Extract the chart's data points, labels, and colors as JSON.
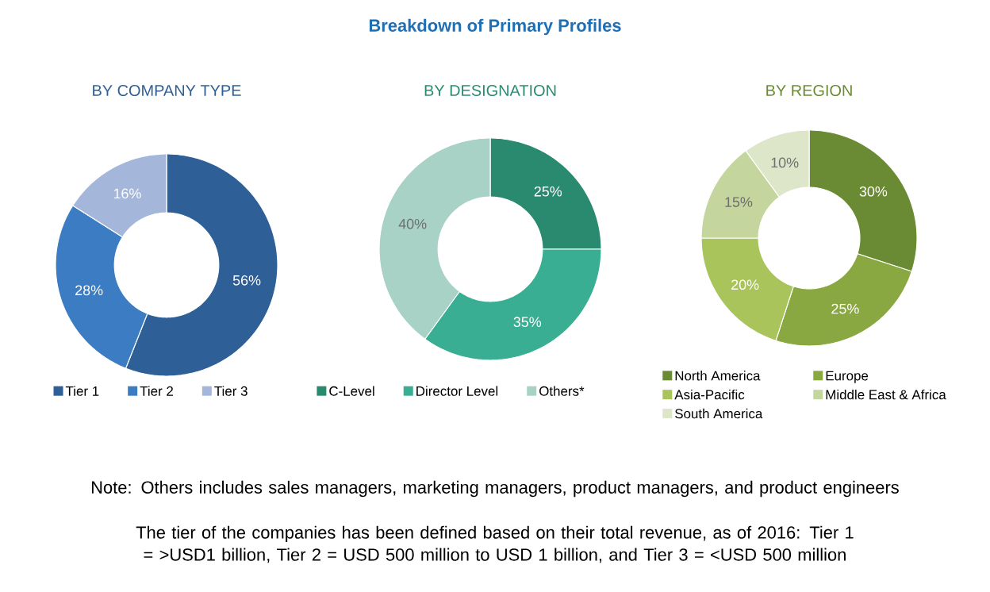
{
  "chart_data": [
    {
      "type": "other",
      "title": "Breakdown of Primary Profiles",
      "annotations": [
        "Note: Others includes sales managers, marketing managers, product managers, and product engineers",
        "The tier of the companies has been defined based on their total revenue, as of 2016: Tier 1 = >USD1 billion, Tier 2 = USD 500 million to USD 1 billion, and Tier 3 = <USD 500 million"
      ]
    },
    {
      "type": "donut",
      "title": "BY COMPANY TYPE",
      "categories": [
        "Tier 1",
        "Tier 2",
        "Tier 3"
      ],
      "values": [
        56,
        28,
        16
      ],
      "colors": [
        "#2e5f96",
        "#3b7cc2",
        "#a4b6d9"
      ],
      "value_labels": [
        "56%",
        "28%",
        "16%"
      ],
      "legend": "bottom"
    },
    {
      "type": "donut",
      "title": "BY DESIGNATION",
      "categories": [
        "C-Level",
        "Director Level",
        "Others*"
      ],
      "values": [
        25,
        35,
        40
      ],
      "colors": [
        "#2a8a70",
        "#3aae93",
        "#a7d2c5"
      ],
      "value_labels": [
        "25%",
        "35%",
        "40%"
      ],
      "legend": "bottom"
    },
    {
      "type": "donut",
      "title": "BY REGION",
      "categories": [
        "North America",
        "Europe",
        "Asia-Pacific",
        "Middle East & Africa",
        "South America"
      ],
      "values": [
        30,
        25,
        20,
        15,
        10
      ],
      "colors": [
        "#6b8a34",
        "#8aa842",
        "#a8c45a",
        "#c4d59e",
        "#dde6c8"
      ],
      "value_labels": [
        "30%",
        "25%",
        "20%",
        "15%",
        "10%"
      ],
      "legend": "bottom"
    }
  ]
}
